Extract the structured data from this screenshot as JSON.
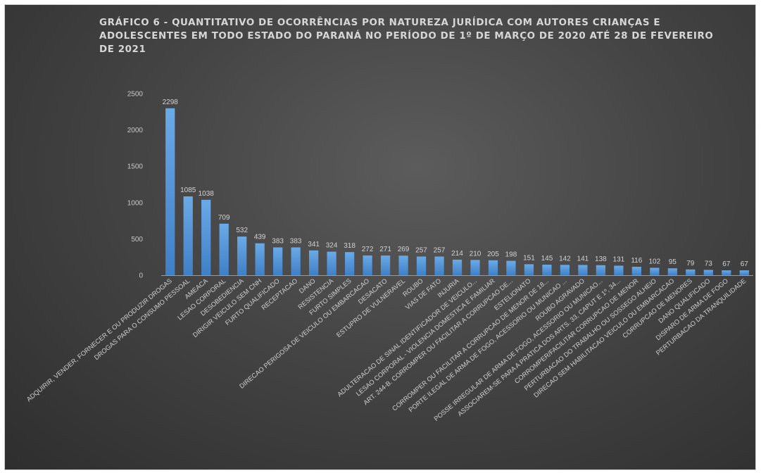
{
  "chart_data": {
    "type": "bar",
    "title": "GRÁFICO 6 - QUANTITATIVO DE OCORRÊNCIAS POR NATUREZA JURÍDICA COM AUTORES CRIANÇAS E ADOLESCENTES EM TODO ESTADO DO PARANÁ NO PERÍODO DE 1º DE MARÇO DE 2020 ATÉ 28 DE FEVEREIRO DE 2021",
    "categories": [
      "ADQUIRIR, VENDER, FORNECER E OU PRODUZIR DROGAS",
      "DROGAS PARA O CONSUMO PESSOAL",
      "AMEACA",
      "LESAO CORPORAL",
      "DESOBEDIENCIA",
      "DIRIGIR VEICULO SEM CNH",
      "FURTO QUALIFICADO",
      "RECEPTACAO",
      "DANO",
      "RESISTENCIA",
      "FURTO SIMPLES",
      "DIRECAO PERIGOSA DE VEICULO OU EMBARCACAO",
      "DESACATO",
      "ESTUPRO DE VULNERAVEL",
      "ROUBO",
      "VIAS DE FATO",
      "INJURIA",
      "ADULTERACAO DE SINAL IDENTIFICADOR DE VEICULO...",
      "LESAO CORPORAL - VIOLENCIA DOMESTICA E FAMILIAR",
      "ART. 244-B. CORROMPER OU FACILITAR A CORRUPCAO DE...",
      "ESTELIONATO",
      "CORROMPER OU FACILITAR A CORRUPCAO DE MENOR DE 18...",
      "PORTE ILEGAL DE ARMA DE FOGO, ACESSORIO OU MUNICAO ...",
      "ROUBO AGRAVADO",
      "POSSE IRREGULAR DE ARMA DE FOGO, ACESSORIO OU MUNICAO...",
      "ASSOCIAREM-SE PARA A PRATICA DOS ARTS. 33, CAPUT E 1º, 34...",
      "CORROMPER/FACILITAR CORRUPCAO DE MENOR",
      "PERTURBACAO DO TRABALHO OU SOSSEGO ALHEIO",
      "DIRECAO SEM HABILITACAO VEICULO OU EMBARCACAO",
      "CORRUPCAO DE MENORES",
      "DANO QUALIFICADO",
      "DISPARO DE ARMA DE FOGO",
      "PERTURBACAO DA TRANQUILIDADE"
    ],
    "values": [
      2298,
      1085,
      1038,
      709,
      532,
      439,
      383,
      383,
      341,
      324,
      318,
      272,
      271,
      269,
      257,
      257,
      214,
      210,
      205,
      198,
      151,
      145,
      142,
      141,
      138,
      131,
      116,
      102,
      95,
      79,
      73,
      67,
      67
    ],
    "ylim": [
      0,
      2500
    ],
    "yticks": [
      "0",
      "500",
      "1000",
      "1500",
      "2000",
      "2500"
    ],
    "grid": false,
    "legend": "none",
    "colors": {
      "bar_top": "#6aaae6",
      "bar_bottom": "#3f7fc6",
      "axis": "#9a9a9a"
    }
  }
}
